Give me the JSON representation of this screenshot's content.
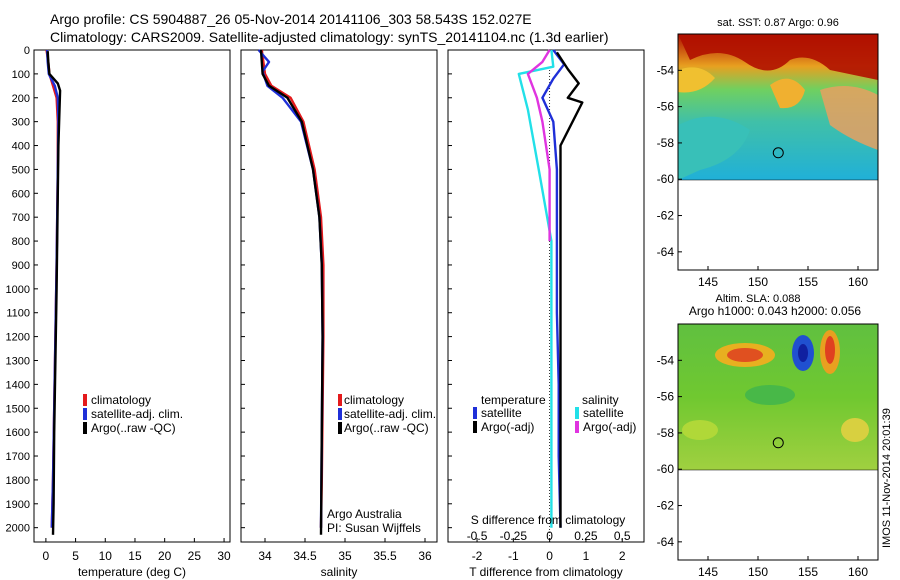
{
  "header": {
    "line1": "Argo profile: CS 5904887_26 05-Nov-2014 20141106_303 58.543S 152.027E",
    "line2": "Climatology: CARS2009. Satellite-adjusted climatology: synTS_20141104.nc (1.3d earlier)"
  },
  "colors": {
    "climatology": "#e41a1c",
    "satellite": "#1f2fd8",
    "argo": "#000000",
    "sat_sal": "#22e0e8",
    "argo_sal": "#e034e0"
  },
  "chart_data": [
    {
      "type": "line",
      "panel": "temperature",
      "xlabel": "temperature (deg C)",
      "ylabel": "",
      "xlim": [
        -2,
        31
      ],
      "ylim": [
        2060,
        0
      ],
      "xticks": [
        "0",
        "5",
        "10",
        "15",
        "20",
        "25",
        "30"
      ],
      "yticks": [
        "0",
        "100",
        "200",
        "300",
        "400",
        "500",
        "600",
        "700",
        "800",
        "900",
        "1000",
        "1100",
        "1200",
        "1300",
        "1400",
        "1500",
        "1600",
        "1700",
        "1800",
        "1900",
        "2000"
      ],
      "legend": [
        "climatology",
        "satellite-adj. clim.",
        "Argo(..raw -QC)"
      ],
      "series": [
        {
          "name": "climatology",
          "x": [
            0.1,
            0.4,
            0.6,
            1.2,
            1.8,
            2.0,
            2.0,
            1.9,
            1.8,
            1.6,
            1.4,
            1.2,
            1.0
          ],
          "depth": [
            0,
            50,
            100,
            150,
            200,
            300,
            500,
            700,
            900,
            1200,
            1500,
            1800,
            2000
          ]
        },
        {
          "name": "satellite-adj. clim.",
          "x": [
            0.2,
            0.3,
            0.5,
            1.5,
            2.0,
            2.1,
            2.0,
            1.9,
            1.8,
            1.6,
            1.4,
            1.2,
            1.0
          ],
          "depth": [
            0,
            50,
            100,
            150,
            200,
            300,
            500,
            700,
            900,
            1200,
            1500,
            1800,
            2000
          ]
        },
        {
          "name": "Argo(..raw -QC)",
          "x": [
            0.3,
            0.4,
            0.6,
            2.0,
            2.4,
            2.3,
            2.1,
            2.0,
            1.9,
            1.8,
            1.6,
            1.4,
            1.3,
            1.2
          ],
          "depth": [
            5,
            50,
            100,
            140,
            170,
            250,
            400,
            600,
            800,
            1000,
            1300,
            1600,
            1900,
            2030
          ]
        }
      ]
    },
    {
      "type": "line",
      "panel": "salinity",
      "xlabel": "salinity",
      "ylabel": "",
      "xlim": [
        33.7,
        36.15
      ],
      "ylim": [
        2060,
        0
      ],
      "xticks": [
        "34",
        "34.5",
        "35",
        "35.5",
        "36"
      ],
      "legend": [
        "climatology",
        "satellite-adj. clim.",
        "Argo(..raw -QC)"
      ],
      "annotations": [
        "Argo Australia",
        "PI: Susan Wijffels"
      ],
      "series": [
        {
          "name": "climatology",
          "x": [
            33.96,
            34.0,
            34.08,
            34.32,
            34.48,
            34.62,
            34.7,
            34.73,
            34.73,
            34.72,
            34.71,
            34.7
          ],
          "depth": [
            0,
            100,
            150,
            200,
            300,
            500,
            700,
            900,
            1200,
            1500,
            1800,
            2000
          ]
        },
        {
          "name": "satellite-adj. clim.",
          "x": [
            33.92,
            34.05,
            33.97,
            34.03,
            34.22,
            34.45,
            34.6,
            34.68,
            34.71,
            34.72,
            34.71,
            34.7
          ],
          "depth": [
            0,
            50,
            90,
            150,
            200,
            300,
            500,
            700,
            900,
            1200,
            1600,
            2000
          ]
        },
        {
          "name": "Argo(..raw -QC)",
          "x": [
            33.95,
            33.97,
            34.05,
            34.28,
            34.46,
            34.6,
            34.68,
            34.71,
            34.72,
            34.71,
            34.7
          ],
          "depth": [
            0,
            100,
            150,
            200,
            300,
            500,
            700,
            900,
            1200,
            1600,
            2030
          ]
        }
      ]
    },
    {
      "type": "line",
      "panel": "difference",
      "xlabel": "T difference from climatology",
      "xlabel2": "S difference from climatology",
      "xlim": [
        -2.8,
        2.6
      ],
      "ylim": [
        2060,
        0
      ],
      "xticks": [
        "-2",
        "-1",
        "0",
        "1",
        "2"
      ],
      "xticks2": [
        "-0.5",
        "-0.25",
        "0",
        "0.25",
        "0.5"
      ],
      "legend_titles": [
        "temperature",
        "salinity"
      ],
      "legend": [
        "satellite",
        "Argo(-adj)",
        "satellite",
        "Argo(-adj)"
      ],
      "series": [
        {
          "name": "satellite",
          "x": [
            0.1,
            0.4,
            0.1,
            -0.2,
            0.1,
            0.2,
            0.2,
            0.2,
            0.25,
            0.25,
            0.3
          ],
          "depth": [
            0,
            60,
            120,
            200,
            300,
            500,
            800,
            1100,
            1400,
            1700,
            2000
          ]
        },
        {
          "name": "Argo(-adj)",
          "x": [
            0.2,
            0.5,
            0.8,
            0.5,
            0.9,
            0.3,
            0.3,
            0.3,
            0.3,
            0.3,
            0.3,
            0.3
          ],
          "depth": [
            10,
            80,
            140,
            200,
            220,
            400,
            600,
            800,
            1100,
            1400,
            1700,
            2000
          ]
        },
        {
          "name": "satellite",
          "x": [
            0.05,
            0.1,
            -0.85,
            -0.6,
            -0.3,
            0.05,
            0.05,
            0.05
          ],
          "depth": [
            0,
            70,
            100,
            250,
            500,
            800,
            1200,
            2000
          ]
        },
        {
          "name": "Argo(-adj)",
          "x": [
            0.0,
            -0.2,
            -0.6,
            -0.35,
            -0.2,
            0.0,
            0.0
          ],
          "depth": [
            0,
            50,
            100,
            200,
            300,
            500,
            800
          ]
        }
      ]
    },
    {
      "type": "heatmap",
      "panel": "sst map",
      "title": "sat. SST: 0.87 Argo: 0.96",
      "xlim": [
        142,
        162
      ],
      "ylim": [
        -65,
        -52
      ],
      "xticks": [
        "145",
        "150",
        "155",
        "160"
      ],
      "yticks": [
        "-54",
        "-56",
        "-58",
        "-60",
        "-62",
        "-64"
      ],
      "marker": {
        "lon": 152.027,
        "lat": -58.543
      }
    },
    {
      "type": "heatmap",
      "panel": "sla map",
      "title": "Altim. SLA: 0.088",
      "subtitle": "Argo h1000: 0.043 h2000: 0.056",
      "xlim": [
        142,
        162
      ],
      "ylim": [
        -65,
        -52
      ],
      "xticks": [
        "145",
        "150",
        "155",
        "160"
      ],
      "yticks": [
        "-54",
        "-56",
        "-58",
        "-60",
        "-62",
        "-64"
      ],
      "marker": {
        "lon": 152.027,
        "lat": -58.543
      }
    }
  ],
  "footer": {
    "stamp": "IMOS 11-Nov-2014 20:01:39"
  }
}
